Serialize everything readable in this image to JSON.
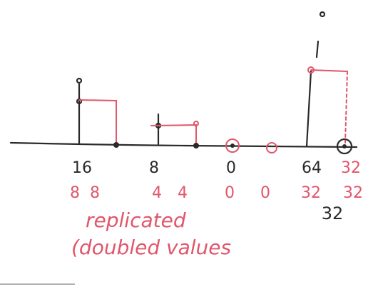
{
  "top_labels": [
    {
      "text": "16",
      "color": "#2a2a2a"
    },
    {
      "text": "8",
      "color": "#2a2a2a"
    },
    {
      "text": "0",
      "color": "#2a2a2a"
    },
    {
      "text": "64",
      "color": "#2a2a2a"
    },
    {
      "text": "32",
      "color": "#e0566a"
    }
  ],
  "replicated_labels": [
    "8",
    "8",
    "4",
    "4",
    "0",
    "0",
    "32",
    "32"
  ],
  "extra_label": "32",
  "caption": [
    "replicated",
    "(doubled values"
  ]
}
